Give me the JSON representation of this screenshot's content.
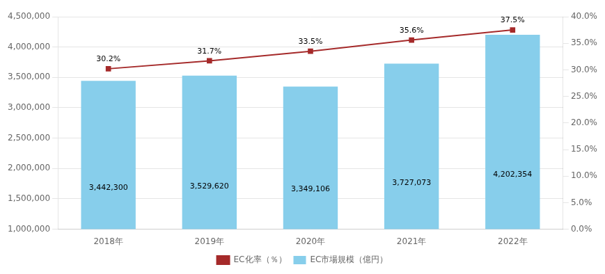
{
  "chart_data": {
    "type": "bar",
    "categories": [
      "2018年",
      "2019年",
      "2020年",
      "2021年",
      "2022年"
    ],
    "series": [
      {
        "name": "EC市場規模（億円）",
        "type": "bar",
        "color": "#87CEEB",
        "values": [
          3442300,
          3529620,
          3349106,
          3727073,
          4202354
        ],
        "value_labels": [
          "3,442,300",
          "3,529,620",
          "3,349,106",
          "3,727,073",
          "4,202,354"
        ]
      },
      {
        "name": "EC化率（％）",
        "type": "line",
        "color": "#A52A2A",
        "marker": "square",
        "axis": "y2",
        "values": [
          30.2,
          31.7,
          33.5,
          35.6,
          37.5
        ],
        "value_labels": [
          "30.2%",
          "31.7%",
          "33.5%",
          "35.6%",
          "37.5%"
        ]
      }
    ],
    "ylim": [
      1000000,
      4500000
    ],
    "yticks": [
      {
        "value": 1000000,
        "label": "1,000,000"
      },
      {
        "value": 1500000,
        "label": "1,500,000"
      },
      {
        "value": 2000000,
        "label": "2,000,000"
      },
      {
        "value": 2500000,
        "label": "2,500,000"
      },
      {
        "value": 3000000,
        "label": "3,000,000"
      },
      {
        "value": 3500000,
        "label": "3,500,000"
      },
      {
        "value": 4000000,
        "label": "4,000,000"
      },
      {
        "value": 4500000,
        "label": "4,500,000"
      }
    ],
    "y2lim": [
      0,
      40
    ],
    "y2ticks": [
      {
        "value": 0,
        "label": "0.0%"
      },
      {
        "value": 5,
        "label": "5.0%"
      },
      {
        "value": 10,
        "label": "10.0%"
      },
      {
        "value": 15,
        "label": "15.0%"
      },
      {
        "value": 20,
        "label": "20.0%"
      },
      {
        "value": 25,
        "label": "25.0%"
      },
      {
        "value": 30,
        "label": "30.0%"
      },
      {
        "value": 35,
        "label": "35.0%"
      },
      {
        "value": 40,
        "label": "40.0%"
      }
    ],
    "grid": true,
    "legend": "bottom",
    "data_labels": true
  }
}
